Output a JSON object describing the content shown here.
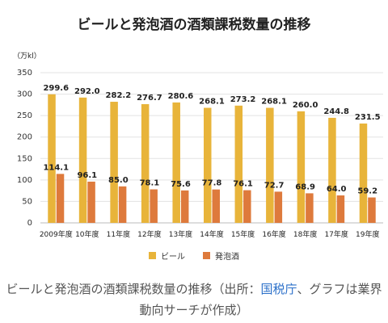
{
  "chart_data": {
    "type": "bar",
    "title": "ビールと発泡酒の酒類課税数量の推移",
    "unit_label": "（万kl）",
    "categories": [
      "2009年度",
      "10年度",
      "11年度",
      "12年度",
      "13年度",
      "14年度",
      "15年度",
      "16年度",
      "18年度",
      "17年度",
      "19年度"
    ],
    "series": [
      {
        "name": "ビール",
        "color": "#e8b43a",
        "values": [
          299.6,
          292.0,
          282.2,
          276.7,
          280.6,
          268.1,
          273.2,
          268.1,
          260.0,
          244.8,
          231.5
        ]
      },
      {
        "name": "発泡酒",
        "color": "#de7a3c",
        "values": [
          114.1,
          96.1,
          85.0,
          78.1,
          75.6,
          77.8,
          76.1,
          72.7,
          68.9,
          64.0,
          59.2
        ]
      }
    ],
    "value_labels": {
      "ビール": [
        "299.6",
        "292.0",
        "282.2",
        "276.7",
        "280.6",
        "268.1",
        "273.2",
        "268.1",
        "260.0",
        "244.8",
        "231.5"
      ],
      "発泡酒": [
        "114.1",
        "96.1",
        "85.0",
        "78.1",
        "75.6",
        "77.8",
        "76.1",
        "72.7",
        "68.9",
        "64.0",
        "59.2"
      ]
    },
    "ylim": [
      0,
      350
    ],
    "yticks": [
      "0",
      "50",
      "100",
      "150",
      "200",
      "250",
      "300",
      "350"
    ],
    "grid": true,
    "legend_position": "bottom"
  },
  "caption": {
    "text_before": "ビールと発泡酒の酒類課税数量の推移（出所：",
    "link": "国税庁",
    "text_after": "、グラフは業界動向サーチが作成）"
  }
}
